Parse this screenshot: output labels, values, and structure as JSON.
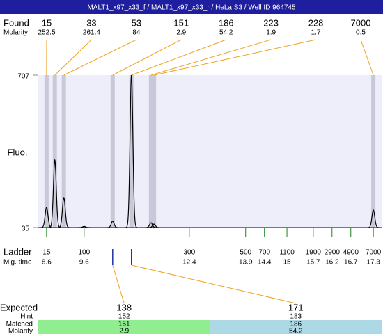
{
  "header": {
    "title": "MALT1_x97_x33_f / MALT1_x97_x33_r / HeLa S3 / Well ID 964745"
  },
  "chart_data": {
    "type": "electropherogram",
    "y_label": "Fluo.",
    "xlim": [
      8.38,
      17.52
    ],
    "ylim": [
      35,
      707
    ],
    "yticks": [
      707,
      35
    ],
    "found": {
      "label": "Found",
      "molarity_label": "Molarity",
      "sizes": [
        15,
        33,
        53,
        151,
        186,
        223,
        228,
        7000
      ],
      "molarity": [
        252.5,
        261.4,
        84,
        2.9,
        54.2,
        1.9,
        1.7,
        0.5
      ],
      "x": [
        8.6,
        8.82,
        9.06,
        10.36,
        10.86,
        11.38,
        11.46,
        17.3
      ]
    },
    "trace": {
      "x": [
        8.6,
        8.82,
        9.06,
        9.6,
        10.36,
        10.86,
        11.38,
        11.46,
        17.3
      ],
      "values": [
        124,
        333,
        167,
        40,
        63,
        707,
        56,
        50,
        112
      ]
    },
    "ladder": {
      "label": "Ladder",
      "time_label": "Mig. time",
      "sizes": [
        15,
        100,
        300,
        500,
        700,
        1100,
        1900,
        2900,
        4900,
        7000
      ],
      "x": [
        8.6,
        9.6,
        12.4,
        13.9,
        14.4,
        15,
        15.7,
        16.2,
        16.7,
        17.3
      ]
    },
    "expected": {
      "label": "Expected",
      "hint_label": "Hint",
      "matched_label": "Matched",
      "molarity_label": "Molarity",
      "values": [
        138,
        171
      ],
      "hint": [
        152,
        183
      ],
      "matched": [
        151,
        186
      ],
      "molarity": [
        2.9,
        54.2
      ],
      "x": [
        10.36,
        10.86
      ],
      "colors": [
        "#90ee90",
        "#add8e6"
      ]
    }
  }
}
